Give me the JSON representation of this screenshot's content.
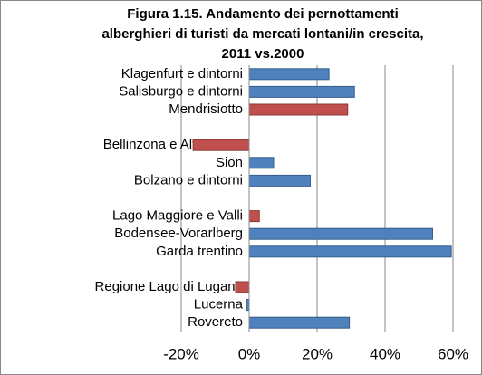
{
  "chart_data": {
    "type": "hbar",
    "title": [
      "Figura 1.15. Andamento dei pernottamenti",
      "alberghieri di turisti da mercati lontani/in crescita,",
      "2011 vs.2000"
    ],
    "categories": [
      "Klagenfurt e dintorni",
      "Salisburgo e dintorni",
      "Mendrisiotto",
      null,
      "Bellinzona e Alto Ticino",
      "Sion",
      "Bolzano e dintorni",
      null,
      "Lago Maggiore e Valli",
      "Bodensee-Vorarlberg",
      "Garda trentino",
      null,
      "Regione Lago di Lugano",
      "Lucerna",
      "Rovereto"
    ],
    "values": [
      23.5,
      31,
      29,
      null,
      -16.5,
      7.2,
      18,
      null,
      3,
      54,
      59.5,
      null,
      -4,
      -0.8,
      29.5
    ],
    "colors": [
      "#4f81bd",
      "#4f81bd",
      "#c0504d",
      null,
      "#c0504d",
      "#4f81bd",
      "#4f81bd",
      null,
      "#c0504d",
      "#4f81bd",
      "#4f81bd",
      null,
      "#c0504d",
      "#4f81bd",
      "#4f81bd"
    ],
    "xlim": [
      -20,
      60
    ],
    "xticks": [
      {
        "value": -20,
        "label": "-20%"
      },
      {
        "value": 0,
        "label": "0%"
      },
      {
        "value": 20,
        "label": "20%"
      },
      {
        "value": 40,
        "label": "40%"
      },
      {
        "value": 60,
        "label": "60%"
      }
    ],
    "grid": true
  }
}
